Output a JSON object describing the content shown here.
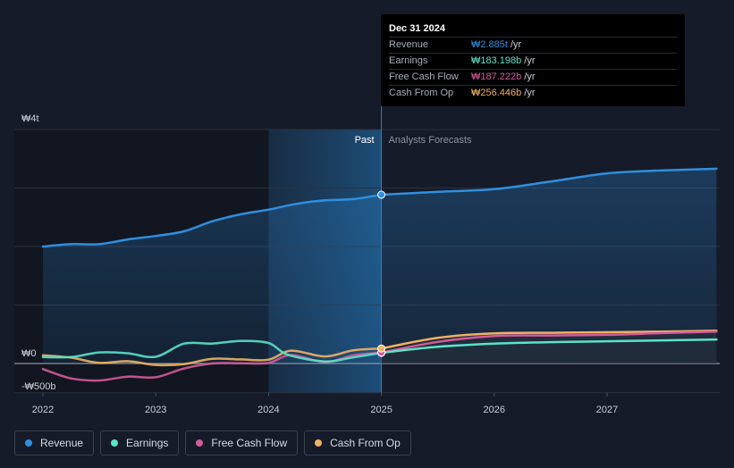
{
  "tooltip": {
    "date": "Dec 31 2024",
    "rows": [
      {
        "name": "Revenue",
        "value": "₩2.885t",
        "unit": "/yr",
        "color": "#2f8fe0"
      },
      {
        "name": "Earnings",
        "value": "₩183.198b",
        "unit": "/yr",
        "color": "#5be3c8"
      },
      {
        "name": "Free Cash Flow",
        "value": "₩187.222b",
        "unit": "/yr",
        "color": "#d45a9b"
      },
      {
        "name": "Cash From Op",
        "value": "₩256.446b",
        "unit": "/yr",
        "color": "#efb263"
      }
    ]
  },
  "legend": [
    {
      "label": "Revenue",
      "color": "#2f8fe0"
    },
    {
      "label": "Earnings",
      "color": "#5be3c8"
    },
    {
      "label": "Free Cash Flow",
      "color": "#d45a9b"
    },
    {
      "label": "Cash From Op",
      "color": "#efb263"
    }
  ],
  "chart_data": {
    "type": "line",
    "title": "",
    "xlabel": "",
    "ylabel": "",
    "x_range": [
      2021.9,
      2027.97
    ],
    "ylim": [
      -500,
      4000
    ],
    "y_unit": "KRW billions",
    "y_tick_labels": [
      {
        "value": 4000,
        "label": "₩4t"
      },
      {
        "value": 0,
        "label": "₩0"
      },
      {
        "value": -500,
        "label": "-₩500b"
      }
    ],
    "x_tick_labels": [
      "2022",
      "2023",
      "2024",
      "2025",
      "2026",
      "2027"
    ],
    "x_tick_values": [
      2022,
      2023,
      2024,
      2025,
      2026,
      2027
    ],
    "past_start": 2024.0,
    "divider_x": 2025.0,
    "past_label": "Past",
    "forecast_label": "Analysts Forecasts",
    "highlight_x": 2025.0,
    "series": [
      {
        "name": "Revenue",
        "color": "#2f8fe0",
        "fill": true,
        "points": [
          [
            2022.0,
            2000
          ],
          [
            2022.25,
            2040
          ],
          [
            2022.5,
            2040
          ],
          [
            2022.75,
            2120
          ],
          [
            2023.0,
            2180
          ],
          [
            2023.25,
            2260
          ],
          [
            2023.5,
            2430
          ],
          [
            2023.75,
            2550
          ],
          [
            2024.0,
            2630
          ],
          [
            2024.25,
            2730
          ],
          [
            2024.5,
            2790
          ],
          [
            2024.75,
            2810
          ],
          [
            2025.0,
            2885
          ],
          [
            2025.5,
            2935
          ],
          [
            2026.0,
            2980
          ],
          [
            2026.5,
            3110
          ],
          [
            2027.0,
            3250
          ],
          [
            2027.5,
            3300
          ],
          [
            2027.97,
            3330
          ]
        ]
      },
      {
        "name": "Earnings",
        "color": "#5be3c8",
        "fill": false,
        "points": [
          [
            2022.0,
            110
          ],
          [
            2022.25,
            110
          ],
          [
            2022.5,
            190
          ],
          [
            2022.75,
            175
          ],
          [
            2023.0,
            115
          ],
          [
            2023.25,
            340
          ],
          [
            2023.5,
            340
          ],
          [
            2023.75,
            385
          ],
          [
            2024.0,
            350
          ],
          [
            2024.17,
            150
          ],
          [
            2024.5,
            35
          ],
          [
            2024.75,
            105
          ],
          [
            2025.0,
            183
          ],
          [
            2025.5,
            285
          ],
          [
            2026.0,
            340
          ],
          [
            2026.5,
            365
          ],
          [
            2027.0,
            380
          ],
          [
            2027.5,
            395
          ],
          [
            2027.97,
            410
          ]
        ]
      },
      {
        "name": "Free Cash Flow",
        "color": "#d45a9b",
        "fill": false,
        "points": [
          [
            2022.0,
            -95
          ],
          [
            2022.25,
            -255
          ],
          [
            2022.5,
            -290
          ],
          [
            2022.75,
            -225
          ],
          [
            2023.0,
            -235
          ],
          [
            2023.25,
            -85
          ],
          [
            2023.5,
            0
          ],
          [
            2023.75,
            5
          ],
          [
            2024.0,
            10
          ],
          [
            2024.2,
            145
          ],
          [
            2024.5,
            25
          ],
          [
            2024.75,
            140
          ],
          [
            2025.0,
            187
          ],
          [
            2025.5,
            370
          ],
          [
            2026.0,
            470
          ],
          [
            2026.5,
            480
          ],
          [
            2027.0,
            490
          ],
          [
            2027.5,
            520
          ],
          [
            2027.97,
            545
          ]
        ]
      },
      {
        "name": "Cash From Op",
        "color": "#efb263",
        "fill": false,
        "points": [
          [
            2022.0,
            140
          ],
          [
            2022.25,
            100
          ],
          [
            2022.5,
            10
          ],
          [
            2022.75,
            40
          ],
          [
            2023.0,
            -25
          ],
          [
            2023.25,
            -10
          ],
          [
            2023.5,
            80
          ],
          [
            2023.75,
            70
          ],
          [
            2024.0,
            65
          ],
          [
            2024.2,
            220
          ],
          [
            2024.5,
            120
          ],
          [
            2024.75,
            225
          ],
          [
            2025.0,
            256
          ],
          [
            2025.5,
            440
          ],
          [
            2026.0,
            515
          ],
          [
            2026.5,
            525
          ],
          [
            2027.0,
            535
          ],
          [
            2027.5,
            545
          ],
          [
            2027.97,
            560
          ]
        ]
      }
    ]
  }
}
